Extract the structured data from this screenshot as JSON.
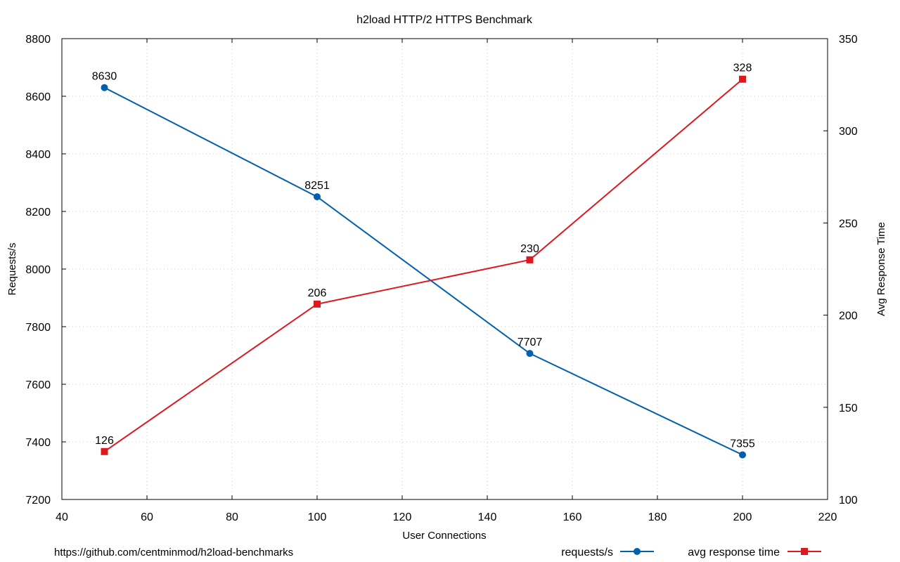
{
  "chart_data": {
    "type": "line",
    "title": "h2load HTTP/2 HTTPS Benchmark",
    "xlabel": "User Connections",
    "ylabel": "Requests/s",
    "y2label": "Avg Response Time",
    "xlim": [
      40,
      220
    ],
    "ylim": [
      7200,
      8800
    ],
    "y2lim": [
      100,
      350
    ],
    "x_ticks": [
      "40",
      "60",
      "80",
      "100",
      "120",
      "140",
      "160",
      "180",
      "200",
      "220"
    ],
    "y_ticks": [
      "7200",
      "7400",
      "7600",
      "7800",
      "8000",
      "8200",
      "8400",
      "8600",
      "8800"
    ],
    "y2_ticks": [
      "100",
      "150",
      "200",
      "250",
      "300",
      "350"
    ],
    "grid": true,
    "legend_position": "bottom-right",
    "series": [
      {
        "name": "requests/s",
        "axis": "left",
        "color": "#0060ad",
        "marker": "circle",
        "x": [
          50,
          100,
          150,
          200
        ],
        "values": [
          8630,
          8251,
          7707,
          7355
        ],
        "labels": [
          "8630",
          "8251",
          "7707",
          "7355"
        ]
      },
      {
        "name": "avg response time",
        "axis": "right",
        "color": "#dd181f",
        "marker": "square",
        "x": [
          50,
          100,
          150,
          200
        ],
        "values": [
          126,
          206,
          230,
          328
        ],
        "labels": [
          "126",
          "206",
          "230",
          "328"
        ]
      }
    ]
  },
  "footer": {
    "source": "https://github.com/centminmod/h2load-benchmarks"
  }
}
